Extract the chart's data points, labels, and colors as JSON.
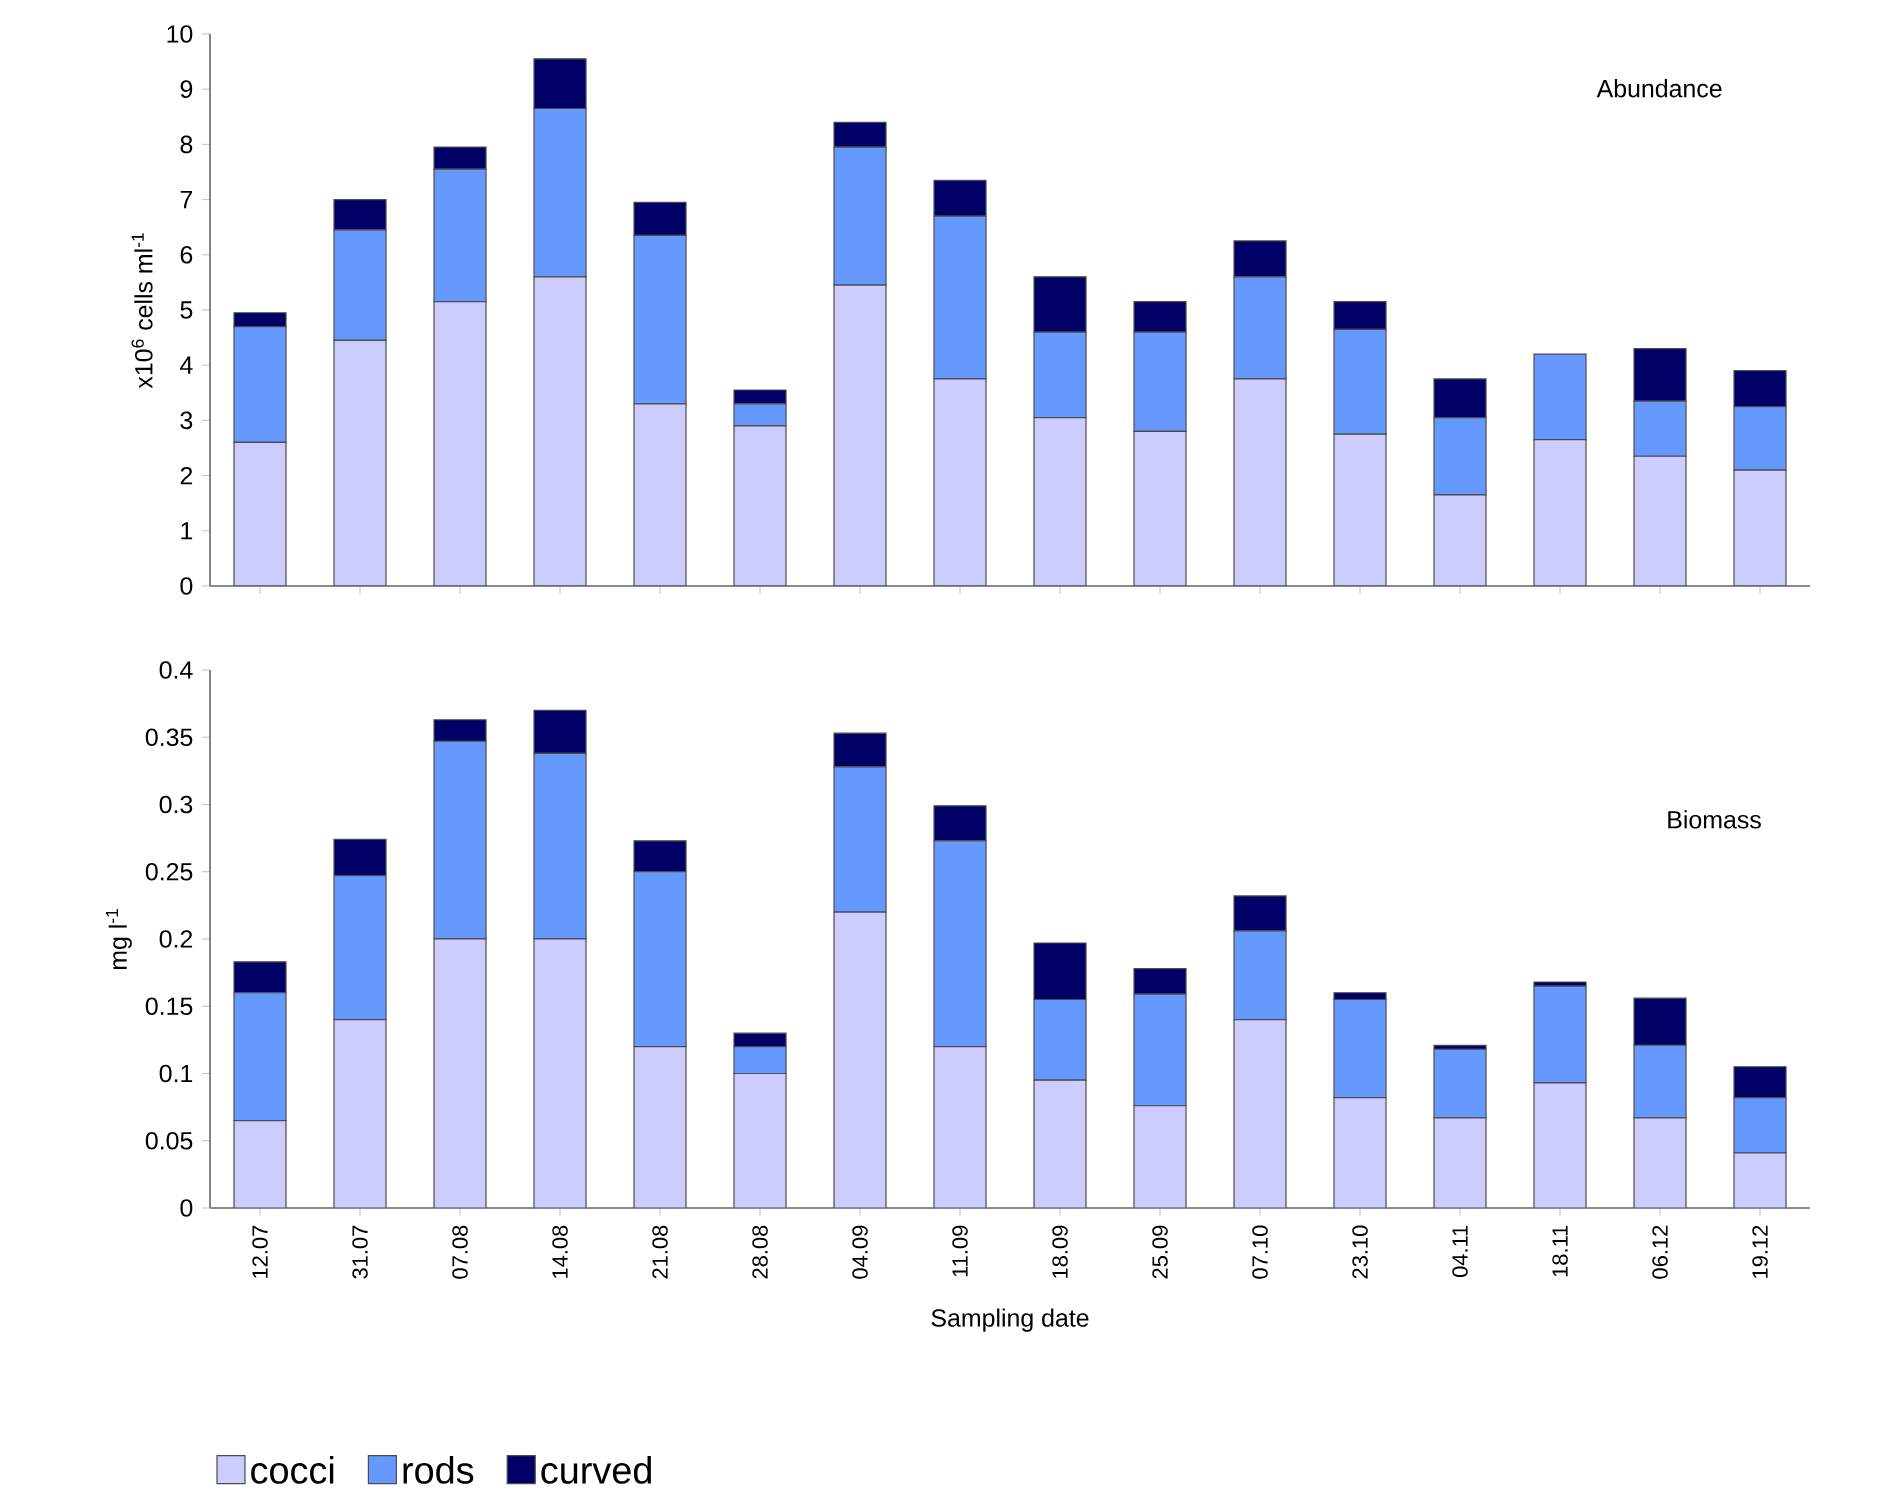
{
  "chart_data": [
    {
      "type": "bar",
      "title": "Abundance",
      "ylabel": "x10$^{6}$ cells ml$^{-1}$",
      "stacked": true,
      "legend": false,
      "tick_labels": "y",
      "categories": [
        "12.07",
        "31.07",
        "07.08",
        "14.08",
        "21.08",
        "28.08",
        "04.09",
        "11.09",
        "18.09",
        "25.09",
        "07.10",
        "23.10",
        "04.11",
        "18.11",
        "06.12",
        "19.12"
      ],
      "ylim": [
        0,
        10
      ],
      "yticks": [
        0,
        1,
        2,
        3,
        4,
        5,
        6,
        7,
        8,
        9,
        10
      ],
      "series": [
        {
          "color": "#ccccff",
          "values": [
            2.6,
            4.45,
            5.15,
            5.6,
            3.3,
            2.9,
            5.45,
            3.75,
            3.05,
            2.8,
            3.75,
            2.75,
            1.65,
            2.65,
            2.35,
            2.1
          ]
        },
        {
          "color": "#6699ff",
          "values": [
            2.1,
            2.0,
            2.4,
            3.05,
            3.05,
            0.4,
            2.5,
            2.95,
            1.55,
            1.8,
            1.85,
            1.9,
            1.4,
            1.55,
            1.0,
            1.15
          ]
        },
        {
          "color": "#000066",
          "values": [
            0.25,
            0.55,
            0.4,
            0.9,
            0.6,
            0.25,
            0.45,
            0.65,
            1.0,
            0.55,
            0.65,
            0.5,
            0.7,
            0,
            0.95,
            0.65
          ]
        }
      ]
    },
    {
      "type": "bar",
      "title": "Biomass",
      "ylabel": "mg l$^{-1}$",
      "xlabel": "Sampling date",
      "stacked": true,
      "legend": "bottom",
      "categories": [
        "12.07",
        "31.07",
        "07.08",
        "14.08",
        "21.08",
        "28.08",
        "04.09",
        "11.09",
        "18.09",
        "25.09",
        "07.10",
        "23.10",
        "04.11",
        "18.11",
        "06.12",
        "19.12"
      ],
      "ylim": [
        0,
        0.4
      ],
      "yticks": [
        0,
        0.05,
        0.1,
        0.15,
        0.2,
        0.25,
        0.3,
        0.35,
        0.4
      ],
      "series": [
        {
          "name": "cocci",
          "color": "#ccccff",
          "values": [
            0.065,
            0.14,
            0.2,
            0.2,
            0.12,
            0.1,
            0.22,
            0.12,
            0.095,
            0.076,
            0.14,
            0.082,
            0.067,
            0.093,
            0.067,
            0.041
          ]
        },
        {
          "name": "rods",
          "color": "#6699ff",
          "values": [
            0.095,
            0.107,
            0.147,
            0.138,
            0.13,
            0.02,
            0.108,
            0.153,
            0.06,
            0.083,
            0.066,
            0.073,
            0.051,
            0.072,
            0.054,
            0.041
          ]
        },
        {
          "name": "curved",
          "color": "#000066",
          "values": [
            0.023,
            0.027,
            0.016,
            0.032,
            0.023,
            0.01,
            0.025,
            0.026,
            0.042,
            0.019,
            0.026,
            0.005,
            0.003,
            0.003,
            0.035,
            0.023
          ]
        }
      ]
    }
  ]
}
